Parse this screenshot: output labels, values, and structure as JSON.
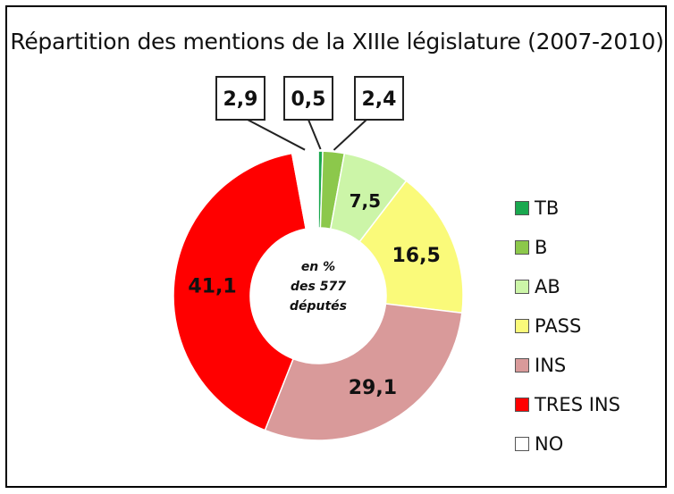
{
  "chart_data": {
    "type": "pie",
    "title": "Répartition des mentions de la XIIIe législature (2007-2010)",
    "center_label": [
      "en %",
      "des 577",
      "députés"
    ],
    "categories": [
      "TB",
      "B",
      "AB",
      "PASS",
      "INS",
      "TRES INS",
      "NO"
    ],
    "values": [
      0.5,
      2.4,
      7.5,
      16.5,
      29.1,
      41.1,
      2.9
    ],
    "value_labels": [
      "0,5",
      "2,4",
      "7,5",
      "16,5",
      "29,1",
      "41,1",
      "2,9"
    ],
    "colors": [
      "#1aa84f",
      "#8cc84b",
      "#ccf5a8",
      "#fafa7a",
      "#d99a9a",
      "#ff0000",
      "#ffffff"
    ],
    "legend_placement": "right",
    "donut": true
  }
}
